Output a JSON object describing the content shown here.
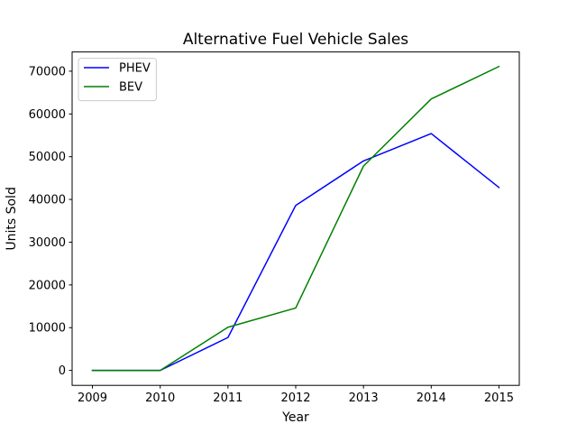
{
  "chart_data": {
    "type": "line",
    "title": "Alternative Fuel Vehicle Sales",
    "xlabel": "Year",
    "ylabel": "Units Sold",
    "x": [
      2009,
      2010,
      2011,
      2012,
      2013,
      2014,
      2015
    ],
    "x_ticks": [
      "2009",
      "2010",
      "2011",
      "2012",
      "2013",
      "2014",
      "2015"
    ],
    "y_ticks": [
      "0",
      "10000",
      "20000",
      "30000",
      "40000",
      "50000",
      "60000",
      "70000"
    ],
    "xlim": [
      2008.7,
      2015.3
    ],
    "ylim": [
      -3500,
      74500
    ],
    "grid": false,
    "legend_position": "top-left",
    "series": [
      {
        "name": "PHEV",
        "color": "#0000ff",
        "values": [
          0,
          0,
          7700,
          38600,
          49000,
          55400,
          42800
        ]
      },
      {
        "name": "BEV",
        "color": "#008000",
        "values": [
          0,
          0,
          10100,
          14600,
          47800,
          63500,
          71100
        ]
      }
    ]
  }
}
